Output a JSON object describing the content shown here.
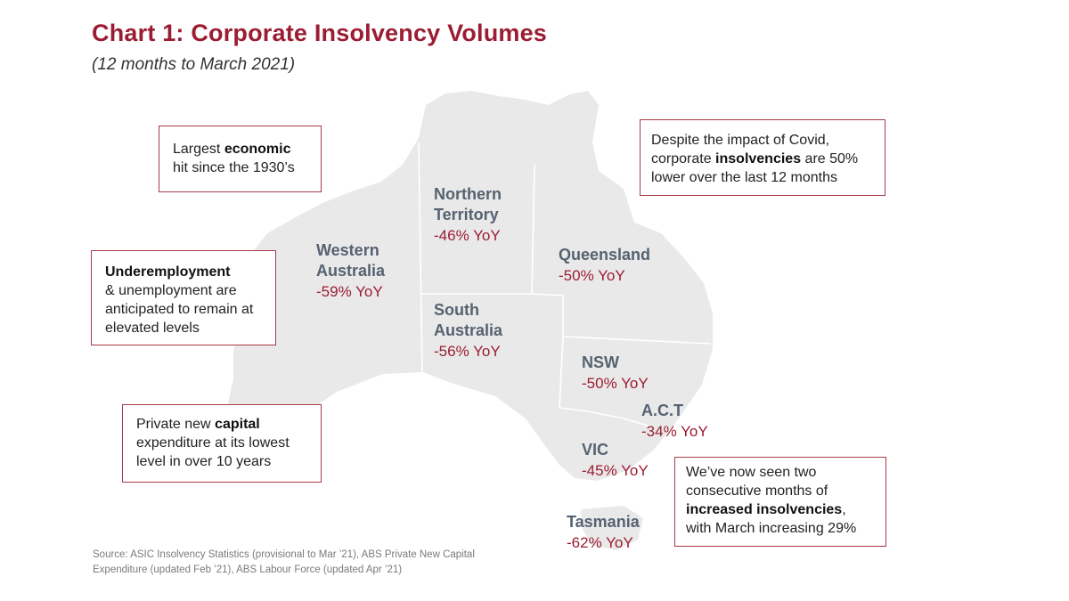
{
  "title": "Chart 1: Corporate Insolvency Volumes",
  "subtitle": "(12 months to March 2021)",
  "colors": {
    "accent": "#9b1d33",
    "region_label": "#556270",
    "map_fill": "#e9e9e9",
    "border": "#ffffff"
  },
  "regions": {
    "nt": {
      "name_l1": "Northern",
      "name_l2": "Territory",
      "value": "-46% YoY"
    },
    "wa": {
      "name_l1": "Western",
      "name_l2": "Australia",
      "value": "-59% YoY"
    },
    "qld": {
      "name": "Queensland",
      "value": "-50% YoY"
    },
    "sa": {
      "name_l1": "South",
      "name_l2": "Australia",
      "value": "-56% YoY"
    },
    "nsw": {
      "name": "NSW",
      "value": "-50% YoY"
    },
    "act": {
      "name": "A.C.T",
      "value": "-34% YoY"
    },
    "vic": {
      "name": "VIC",
      "value": "-45% YoY"
    },
    "tas": {
      "name": "Tasmania",
      "value": "-62% YoY"
    }
  },
  "callouts": {
    "economic": {
      "pre": "Largest ",
      "bold": "economic",
      "post": "hit since the 1930’s"
    },
    "employment": {
      "bold": "Underemployment",
      "post": "& unemployment are anticipated to remain at elevated levels"
    },
    "capital": {
      "pre": "Private new ",
      "bold": "capital",
      "post": "expenditure at its lowest level in over 10 years"
    },
    "covid": {
      "line1": "Despite the impact of Covid,",
      "pre": "corporate ",
      "bold": "insolvencies",
      "mid": " are 50%",
      "post": "lower over the last 12 months"
    },
    "increase": {
      "line1": "We’ve now seen two",
      "line2": "consecutive months of",
      "bold": "increased insolvencies",
      "mid": ",",
      "post": "with March increasing 29%"
    }
  },
  "source": "Source: ASIC Insolvency Statistics (provisional to Mar ’21), ABS Private New Capital Expenditure (updated Feb ’21), ABS Labour Force (updated Apr ’21)"
}
